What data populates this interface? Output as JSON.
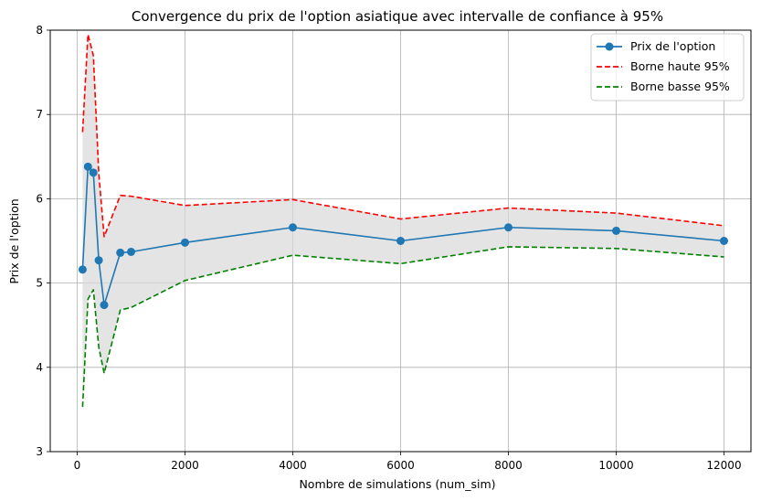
{
  "chart_data": {
    "type": "line",
    "title": "Convergence du prix de l'option asiatique avec intervalle de confiance à 95%",
    "xlabel": "Nombre de simulations (num_sim)",
    "ylabel": "Prix de l'option",
    "xlim": [
      -500,
      12500
    ],
    "ylim": [
      3,
      8
    ],
    "xticks": [
      0,
      2000,
      4000,
      6000,
      8000,
      10000,
      12000
    ],
    "yticks": [
      3,
      4,
      5,
      6,
      7,
      8
    ],
    "grid": true,
    "legend_position": "top-right",
    "x": [
      100,
      200,
      300,
      400,
      500,
      800,
      1000,
      2000,
      4000,
      6000,
      8000,
      10000,
      12000
    ],
    "series": [
      {
        "name": "Prix de l'option",
        "style": "solid-marker",
        "color": "#1f77b4",
        "values": [
          5.16,
          6.38,
          6.31,
          5.27,
          4.74,
          5.36,
          5.37,
          5.48,
          5.66,
          5.5,
          5.66,
          5.62,
          5.5
        ]
      },
      {
        "name": "Borne haute 95%",
        "style": "dashed",
        "color": "#ff0000",
        "values": [
          6.79,
          7.95,
          7.7,
          6.3,
          5.55,
          6.04,
          6.03,
          5.92,
          5.99,
          5.76,
          5.89,
          5.83,
          5.68
        ]
      },
      {
        "name": "Borne basse 95%",
        "style": "dashed",
        "color": "#008000",
        "values": [
          3.53,
          4.81,
          4.92,
          4.24,
          3.93,
          4.68,
          4.71,
          5.03,
          5.33,
          5.23,
          5.43,
          5.41,
          5.31
        ]
      }
    ],
    "fill_color": "#d9d9d9"
  }
}
